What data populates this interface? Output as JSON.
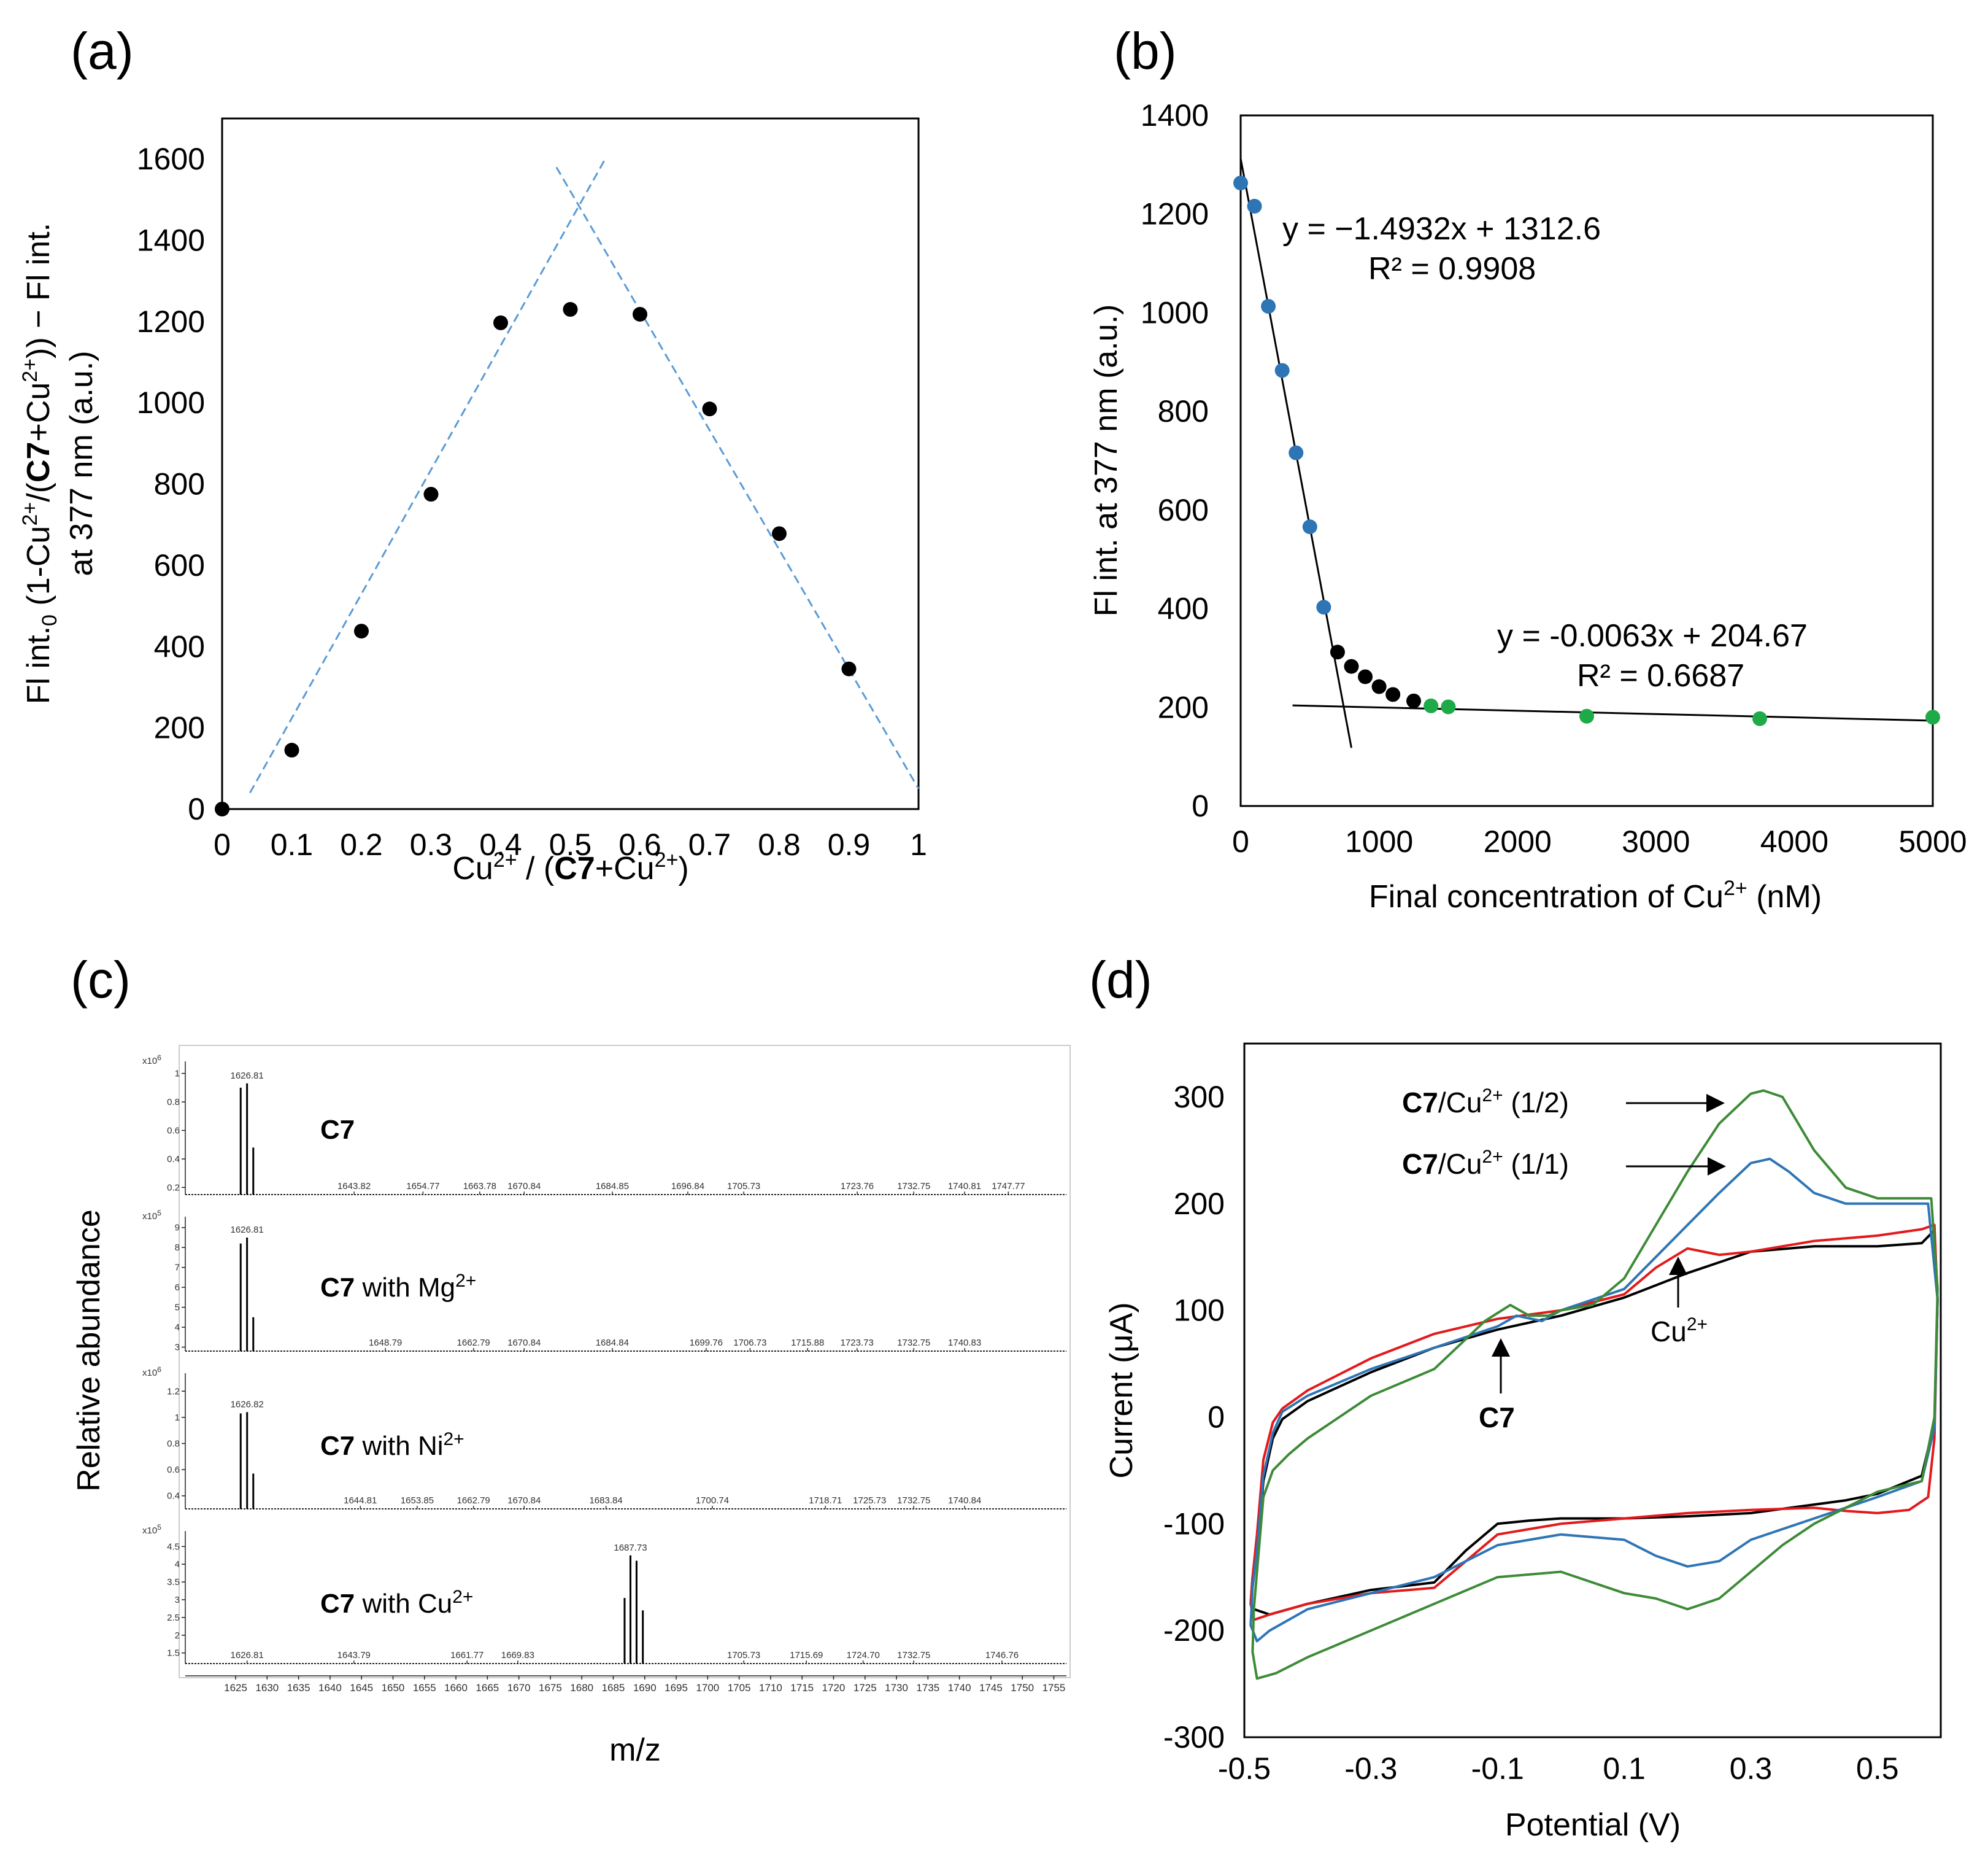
{
  "figure": {
    "panels": [
      "(a)",
      "(b)",
      "(c)",
      "(d)"
    ]
  },
  "chart_data": [
    {
      "id": "a",
      "type": "scatter",
      "panel_label": "(a)",
      "title": "",
      "xlabel": "Cu2+ / (C7+Cu2+)",
      "xlabel_parts": [
        "Cu",
        "2+",
        " / (",
        "C7",
        "+Cu",
        "2+",
        ")"
      ],
      "ylabel_line1_parts": [
        "Fl int.",
        "0",
        " (1-Cu",
        "2+",
        "/(",
        "C7",
        "+Cu",
        "2+",
        ")) − Fl int."
      ],
      "ylabel_line2": "at 377 nm (a.u.)",
      "xlim": [
        0,
        1
      ],
      "ylim": [
        0,
        1700
      ],
      "xticks": [
        0,
        0.1,
        0.2,
        0.3,
        0.4,
        0.5,
        0.6,
        0.7,
        0.8,
        0.9,
        1
      ],
      "xtick_labels": [
        "0",
        "0.1",
        "0.2",
        "0.3",
        "0.4",
        "0.5",
        "0.6",
        "0.7",
        "0.8",
        "0.9",
        "1"
      ],
      "yticks": [
        0,
        200,
        400,
        600,
        800,
        1000,
        1200,
        1400,
        1600
      ],
      "ytick_labels": [
        "0",
        "200",
        "400",
        "600",
        "800",
        "1000",
        "1200",
        "1400",
        "1600"
      ],
      "x": [
        0,
        0.1,
        0.2,
        0.3,
        0.4,
        0.5,
        0.6,
        0.7,
        0.8,
        0.9
      ],
      "y": [
        0,
        145,
        438,
        775,
        1197,
        1230,
        1218,
        985,
        678,
        345
      ],
      "marker_color": "#000000",
      "fit_lines": [
        {
          "x": [
            0.04,
            0.55
          ],
          "y": [
            40,
            1600
          ],
          "color": "#5b9bd5",
          "style": "dashed"
        },
        {
          "x": [
            0.48,
            1.0
          ],
          "y": [
            1580,
            50
          ],
          "color": "#5b9bd5",
          "style": "dashed"
        }
      ]
    },
    {
      "id": "b",
      "type": "scatter",
      "panel_label": "(b)",
      "xlabel": "Final concentration of Cu2+ (nM)",
      "xlabel_parts": [
        "Final concentration of Cu",
        "2+",
        " (nM)"
      ],
      "ylabel": "Fl int. at 377 nm (a.u.)",
      "xlim": [
        0,
        5000
      ],
      "ylim": [
        0,
        1400
      ],
      "xticks": [
        0,
        1000,
        2000,
        3000,
        4000,
        5000
      ],
      "xtick_labels": [
        "0",
        "1000",
        "2000",
        "3000",
        "4000",
        "5000"
      ],
      "yticks": [
        0,
        200,
        400,
        600,
        800,
        1000,
        1200,
        1400
      ],
      "ytick_labels": [
        "0",
        "200",
        "400",
        "600",
        "800",
        "1000",
        "1200",
        "1400"
      ],
      "series": [
        {
          "name": "blue",
          "color": "#2e75b6",
          "x": [
            0,
            100,
            200,
            300,
            400,
            500,
            600
          ],
          "y": [
            1263,
            1216,
            1013,
            883,
            716,
            566,
            403
          ]
        },
        {
          "name": "black",
          "color": "#000000",
          "x": [
            700,
            800,
            900,
            1000,
            1100,
            1250
          ],
          "y": [
            312,
            283,
            262,
            242,
            226,
            213
          ]
        },
        {
          "name": "green",
          "color": "#1faa4a",
          "x": [
            1375,
            1500,
            2500,
            3750,
            5000
          ],
          "y": [
            203,
            201,
            182,
            177,
            180
          ]
        }
      ],
      "fits": [
        {
          "equation": "y = −1.4932x + 1312.6",
          "r2": "R² = 0.9908",
          "x": [
            0,
            800
          ],
          "y": [
            1312.6,
            118
          ]
        },
        {
          "equation": "y = -0.0063x + 204.67",
          "r2": "R² = 0.6687",
          "x": [
            375,
            5000
          ],
          "y": [
            204,
            173
          ]
        }
      ]
    },
    {
      "id": "c",
      "type": "bar",
      "panel_label": "(c)",
      "xlabel": "m/z",
      "ylabel": "Relative abundance",
      "xlim": [
        1617,
        1757
      ],
      "xticks": [
        1625,
        1630,
        1635,
        1640,
        1645,
        1650,
        1655,
        1660,
        1665,
        1670,
        1675,
        1680,
        1685,
        1690,
        1695,
        1700,
        1705,
        1710,
        1715,
        1720,
        1725,
        1730,
        1735,
        1740,
        1745,
        1750,
        1755
      ],
      "xtick_labels": [
        "1625",
        "1630",
        "1635",
        "1640",
        "1645",
        "1650",
        "1655",
        "1660",
        "1665",
        "1670",
        "1675",
        "1680",
        "1685",
        "1690",
        "1695",
        "1700",
        "1705",
        "1710",
        "1715",
        "1720",
        "1725",
        "1730",
        "1735",
        "1740",
        "1745",
        "1750",
        "1755"
      ],
      "spectra": [
        {
          "name_bold": "C7",
          "name_rest": "",
          "name_sup": "",
          "exp_label": "x10",
          "exp_sup": "6",
          "ylim": [
            0.15,
            1.05
          ],
          "yticks": [
            0.2,
            0.4,
            0.6,
            0.8,
            1
          ],
          "ytick_labels": [
            "0.2",
            "0.4",
            "0.6",
            "0.8",
            "1"
          ],
          "peaks": [
            [
              1625.8,
              0.9
            ],
            [
              1626.81,
              0.93
            ],
            [
              1627.8,
              0.48
            ]
          ],
          "peak_label": "1626.81",
          "peak_label_mz": 1626.81,
          "labels": [
            [
              1643.82,
              "1643.82"
            ],
            [
              1654.77,
              "1654.77"
            ],
            [
              1663.78,
              "1663.78"
            ],
            [
              1670.84,
              "1670.84"
            ],
            [
              1684.85,
              "1684.85"
            ],
            [
              1696.84,
              "1696.84"
            ],
            [
              1705.73,
              "1705.73"
            ],
            [
              1723.76,
              "1723.76"
            ],
            [
              1732.75,
              "1732.75"
            ],
            [
              1740.81,
              "1740.81"
            ],
            [
              1747.77,
              "1747.77"
            ]
          ]
        },
        {
          "name_bold": "C7",
          "name_rest": " with Mg",
          "name_sup": "2+",
          "exp_label": "x10",
          "exp_sup": "5",
          "ylim": [
            2.8,
            9.3
          ],
          "yticks": [
            3,
            4,
            5,
            6,
            7,
            8,
            9
          ],
          "ytick_labels": [
            "3",
            "4",
            "5",
            "6",
            "7",
            "8",
            "9"
          ],
          "peaks": [
            [
              1625.8,
              8.2
            ],
            [
              1626.81,
              8.5
            ],
            [
              1627.8,
              4.5
            ]
          ],
          "peak_label": "1626.81",
          "peak_label_mz": 1626.81,
          "labels": [
            [
              1648.79,
              "1648.79"
            ],
            [
              1662.79,
              "1662.79"
            ],
            [
              1670.84,
              "1670.84"
            ],
            [
              1684.84,
              "1684.84"
            ],
            [
              1699.76,
              "1699.76"
            ],
            [
              1706.73,
              "1706.73"
            ],
            [
              1715.88,
              "1715.88"
            ],
            [
              1723.73,
              "1723.73"
            ],
            [
              1732.75,
              "1732.75"
            ],
            [
              1740.83,
              "1740.83"
            ]
          ]
        },
        {
          "name_bold": "C7",
          "name_rest": " with Ni",
          "name_sup": "2+",
          "exp_label": "x10",
          "exp_sup": "6",
          "ylim": [
            0.3,
            1.3
          ],
          "yticks": [
            0.4,
            0.6,
            0.8,
            1,
            1.2
          ],
          "ytick_labels": [
            "0.4",
            "0.6",
            "0.8",
            "1",
            "1.2"
          ],
          "peaks": [
            [
              1625.8,
              1.03
            ],
            [
              1626.82,
              1.04
            ],
            [
              1627.8,
              0.57
            ]
          ],
          "peak_label": "1626.82",
          "peak_label_mz": 1626.82,
          "labels": [
            [
              1644.81,
              "1644.81"
            ],
            [
              1653.85,
              "1653.85"
            ],
            [
              1662.79,
              "1662.79"
            ],
            [
              1670.84,
              "1670.84"
            ],
            [
              1683.84,
              "1683.84"
            ],
            [
              1700.74,
              "1700.74"
            ],
            [
              1718.71,
              "1718.71"
            ],
            [
              1725.73,
              "1725.73"
            ],
            [
              1732.75,
              "1732.75"
            ],
            [
              1740.84,
              "1740.84"
            ]
          ]
        },
        {
          "name_bold": "C7",
          "name_rest": " with Cu",
          "name_sup": "2+",
          "exp_label": "x10",
          "exp_sup": "5",
          "ylim": [
            1.2,
            4.8
          ],
          "yticks": [
            1.5,
            2,
            2.5,
            3,
            3.5,
            4,
            4.5
          ],
          "ytick_labels": [
            "1.5",
            "2",
            "2.5",
            "3",
            "3.5",
            "4",
            "4.5"
          ],
          "peaks": [
            [
              1686.8,
              3.05
            ],
            [
              1687.73,
              4.25
            ],
            [
              1688.7,
              4.1
            ],
            [
              1689.7,
              2.7
            ]
          ],
          "peak_label": "1687.73",
          "peak_label_mz": 1687.73,
          "labels": [
            [
              1626.81,
              "1626.81"
            ],
            [
              1643.79,
              "1643.79"
            ],
            [
              1661.77,
              "1661.77"
            ],
            [
              1669.83,
              "1669.83"
            ],
            [
              1705.73,
              "1705.73"
            ],
            [
              1715.69,
              "1715.69"
            ],
            [
              1724.7,
              "1724.70"
            ],
            [
              1732.75,
              "1732.75"
            ],
            [
              1746.76,
              "1746.76"
            ]
          ]
        }
      ]
    },
    {
      "id": "d",
      "type": "line",
      "panel_label": "(d)",
      "xlabel": "Potential (V)",
      "ylabel": "Current (μA)",
      "xlim": [
        -0.5,
        0.6
      ],
      "ylim": [
        -300,
        350
      ],
      "xticks": [
        -0.5,
        -0.3,
        -0.1,
        0.1,
        0.3,
        0.5
      ],
      "xtick_labels": [
        "-0.5",
        "-0.3",
        "-0.1",
        "0.1",
        "0.3",
        "0.5"
      ],
      "yticks": [
        -300,
        -200,
        -100,
        0,
        100,
        200,
        300
      ],
      "ytick_labels": [
        "-300",
        "-200",
        "-100",
        "0",
        "100",
        "200",
        "300"
      ],
      "series": [
        {
          "name": "C7",
          "color": "#000000",
          "x": [
            -0.48,
            -0.47,
            -0.455,
            -0.44,
            -0.4,
            -0.3,
            -0.2,
            -0.1,
            0.0,
            0.1,
            0.2,
            0.3,
            0.4,
            0.5,
            0.57,
            0.59,
            0.595,
            0.59,
            0.57,
            0.5,
            0.45,
            0.4,
            0.3,
            0.2,
            0.1,
            0.0,
            -0.05,
            -0.1,
            -0.15,
            -0.2,
            -0.3,
            -0.4,
            -0.46,
            -0.485,
            -0.49,
            -0.487,
            -0.48
          ],
          "y": [
            -130,
            -60,
            -20,
            -2,
            15,
            42,
            65,
            82,
            95,
            112,
            135,
            155,
            160,
            160,
            163,
            175,
            110,
            -5,
            -55,
            -72,
            -78,
            -82,
            -90,
            -93,
            -95,
            -95,
            -97,
            -100,
            -125,
            -155,
            -162,
            -175,
            -185,
            -180,
            -175,
            -150,
            -130
          ]
        },
        {
          "name": "Cu2+",
          "color": "#e31a1c",
          "x": [
            -0.48,
            -0.47,
            -0.455,
            -0.44,
            -0.4,
            -0.3,
            -0.2,
            -0.1,
            0.0,
            0.1,
            0.15,
            0.2,
            0.25,
            0.3,
            0.4,
            0.5,
            0.57,
            0.59,
            0.595,
            0.59,
            0.58,
            0.55,
            0.5,
            0.45,
            0.4,
            0.3,
            0.2,
            0.1,
            0.0,
            -0.05,
            -0.1,
            -0.15,
            -0.2,
            -0.3,
            -0.4,
            -0.46,
            -0.485,
            -0.49,
            -0.487,
            -0.48
          ],
          "y": [
            -110,
            -40,
            -5,
            8,
            25,
            55,
            78,
            92,
            100,
            115,
            140,
            158,
            152,
            155,
            165,
            170,
            176,
            180,
            110,
            -20,
            -75,
            -87,
            -90,
            -88,
            -85,
            -87,
            -90,
            -95,
            -100,
            -105,
            -110,
            -135,
            -160,
            -165,
            -175,
            -185,
            -190,
            -175,
            -150,
            -110
          ]
        },
        {
          "name": "C7/Cu2+ (1/1)",
          "color": "#2e75b6",
          "x": [
            -0.48,
            -0.47,
            -0.455,
            -0.44,
            -0.4,
            -0.3,
            -0.2,
            -0.1,
            -0.07,
            -0.03,
            0.0,
            0.1,
            0.15,
            0.2,
            0.25,
            0.3,
            0.33,
            0.36,
            0.4,
            0.45,
            0.5,
            0.58,
            0.595,
            0.59,
            0.57,
            0.5,
            0.45,
            0.4,
            0.3,
            0.25,
            0.2,
            0.15,
            0.1,
            0.0,
            -0.1,
            -0.2,
            -0.3,
            -0.4,
            -0.46,
            -0.48,
            -0.49,
            -0.487,
            -0.48
          ],
          "y": [
            -125,
            -55,
            -15,
            5,
            20,
            45,
            65,
            85,
            95,
            90,
            100,
            120,
            150,
            180,
            210,
            238,
            242,
            230,
            210,
            200,
            200,
            200,
            110,
            -10,
            -60,
            -75,
            -85,
            -95,
            -115,
            -135,
            -140,
            -130,
            -115,
            -110,
            -120,
            -150,
            -165,
            -180,
            -200,
            -210,
            -195,
            -160,
            -125
          ]
        },
        {
          "name": "C7/Cu2+ (1/2)",
          "color": "#3d8b37",
          "x": [
            -0.48,
            -0.47,
            -0.455,
            -0.43,
            -0.4,
            -0.3,
            -0.2,
            -0.12,
            -0.08,
            -0.05,
            -0.02,
            0.0,
            0.05,
            0.1,
            0.15,
            0.2,
            0.25,
            0.3,
            0.32,
            0.35,
            0.4,
            0.45,
            0.5,
            0.585,
            0.595,
            0.59,
            0.57,
            0.5,
            0.45,
            0.4,
            0.35,
            0.3,
            0.25,
            0.2,
            0.15,
            0.1,
            0.0,
            -0.1,
            -0.2,
            -0.3,
            -0.4,
            -0.45,
            -0.48,
            -0.487,
            -0.485,
            -0.48
          ],
          "y": [
            -145,
            -75,
            -50,
            -35,
            -20,
            20,
            45,
            90,
            105,
            95,
            95,
            100,
            105,
            130,
            180,
            230,
            275,
            303,
            306,
            300,
            250,
            215,
            205,
            205,
            120,
            0,
            -60,
            -70,
            -85,
            -100,
            -120,
            -145,
            -170,
            -180,
            -170,
            -165,
            -145,
            -150,
            -175,
            -200,
            -225,
            -240,
            -245,
            -220,
            -180,
            -145
          ]
        }
      ],
      "annotations": [
        {
          "bold": "C7",
          "rest": "/Cu",
          "sup": "2+",
          "tail": " (1/2)",
          "color": "#3d8b37"
        },
        {
          "bold": "C7",
          "rest": "/Cu",
          "sup": "2+",
          "tail": " (1/1)",
          "color": "#2e75b6"
        },
        {
          "bold": "",
          "rest": "Cu",
          "sup": "2+",
          "tail": "",
          "color": "#e31a1c"
        },
        {
          "bold": "C7",
          "rest": "",
          "sup": "",
          "tail": "",
          "color": "#000000"
        }
      ]
    }
  ]
}
